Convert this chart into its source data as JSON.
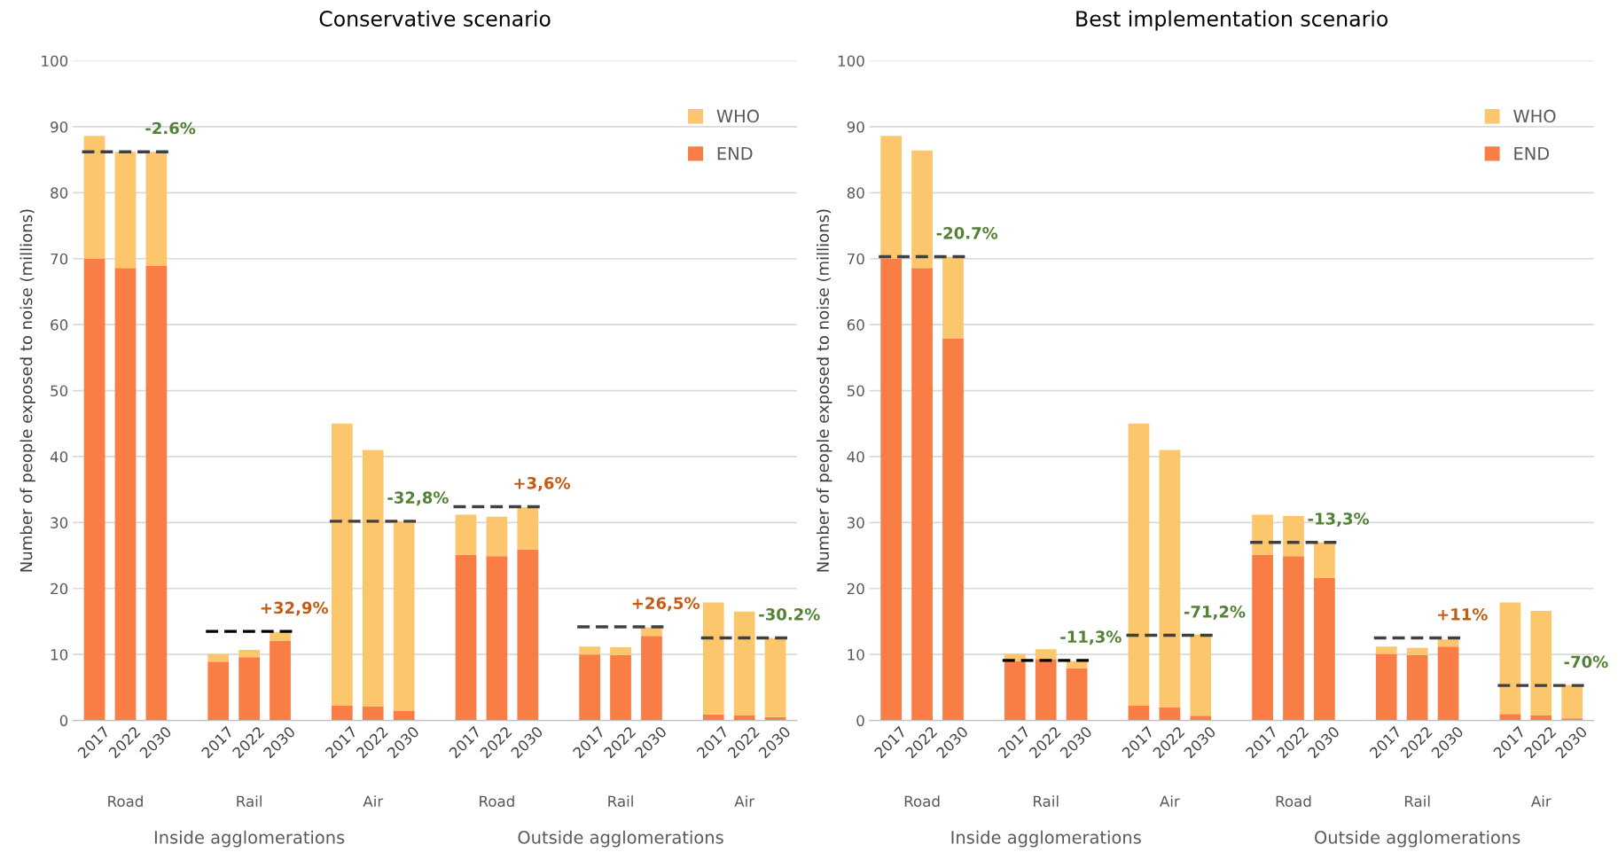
{
  "chart_data": [
    {
      "type": "bar",
      "title": "Conservative scenario",
      "ylabel": "Number of people exposed to noise (millions)",
      "stacked": true,
      "legend": "top right",
      "grid": "y",
      "categories": [
        "2017",
        "2022",
        "2030",
        "2017",
        "2022",
        "2030",
        "2017",
        "2022",
        "2030",
        "2017",
        "2022",
        "2030",
        "2017",
        "2022",
        "2030",
        "2017",
        "2022",
        "2030"
      ],
      "series": [
        {
          "name": "END",
          "color": "#f87e45",
          "values": [
            70.0,
            68.6,
            68.9,
            8.9,
            9.6,
            12.1,
            2.3,
            2.1,
            1.5,
            25.1,
            24.9,
            25.9,
            10.0,
            9.9,
            12.8,
            0.9,
            0.8,
            0.5
          ]
        },
        {
          "name": "WHO",
          "color": "#fcc66d",
          "values": [
            18.6,
            17.6,
            17.3,
            1.2,
            1.1,
            1.3,
            42.7,
            38.9,
            28.7,
            6.1,
            6.0,
            6.4,
            1.2,
            1.2,
            1.3,
            17.0,
            15.7,
            12.0
          ]
        }
      ],
      "ylim": [
        0,
        100
      ],
      "yticks": [
        0,
        10,
        20,
        30,
        40,
        50,
        60,
        70,
        80,
        90,
        100
      ],
      "ref_lines": [
        {
          "axis": "y",
          "value": 86.2,
          "color": "#404040",
          "line_style": "dashed"
        },
        {
          "axis": "y",
          "value": 13.5,
          "color": "#000000",
          "line_style": "dashed"
        },
        {
          "axis": "y",
          "value": 30.2,
          "color": "#404040",
          "line_style": "dashed"
        },
        {
          "axis": "y",
          "value": 32.4,
          "color": "#404040",
          "line_style": "dashed"
        },
        {
          "axis": "y",
          "value": 14.2,
          "color": "#404040",
          "line_style": "dashed"
        },
        {
          "axis": "y",
          "value": 12.5,
          "color": "#404040",
          "line_style": "dashed"
        }
      ],
      "annotations": [
        "Road",
        "Rail",
        "Air",
        "Road",
        "Rail",
        "Air",
        "Inside agglomerations",
        "Outside agglomerations",
        "-2.6%",
        "+32,9%",
        "-32,8%",
        "+3,6%",
        "+26,5%",
        "-30.2%"
      ]
    },
    {
      "type": "bar",
      "title": "Best implementation scenario",
      "ylabel": "Number of people exposed to noise (millions)",
      "stacked": true,
      "legend": "top right",
      "grid": "y",
      "categories": [
        "2017",
        "2022",
        "2030",
        "2017",
        "2022",
        "2030",
        "2017",
        "2022",
        "2030",
        "2017",
        "2022",
        "2030",
        "2017",
        "2022",
        "2030",
        "2017",
        "2022",
        "2030"
      ],
      "series": [
        {
          "name": "END",
          "color": "#f87e45",
          "values": [
            70.0,
            68.6,
            57.9,
            9.0,
            9.3,
            7.9,
            2.3,
            2.0,
            0.7,
            25.1,
            24.9,
            21.6,
            10.1,
            9.9,
            11.2,
            1.0,
            0.8,
            0.3
          ]
        },
        {
          "name": "WHO",
          "color": "#fcc66d",
          "values": [
            18.6,
            17.8,
            12.4,
            1.1,
            1.5,
            1.1,
            42.7,
            39.0,
            12.3,
            6.1,
            6.1,
            5.4,
            1.1,
            1.1,
            1.1,
            16.9,
            15.8,
            5.1
          ]
        }
      ],
      "ylim": [
        0,
        100
      ],
      "yticks": [
        0,
        10,
        20,
        30,
        40,
        50,
        60,
        70,
        80,
        90,
        100
      ],
      "ref_lines": [
        {
          "axis": "y",
          "value": 70.3,
          "color": "#404040",
          "line_style": "dashed"
        },
        {
          "axis": "y",
          "value": 9.1,
          "color": "#000000",
          "line_style": "dashed"
        },
        {
          "axis": "y",
          "value": 12.9,
          "color": "#404040",
          "line_style": "dashed"
        },
        {
          "axis": "y",
          "value": 27.0,
          "color": "#404040",
          "line_style": "dashed"
        },
        {
          "axis": "y",
          "value": 12.5,
          "color": "#404040",
          "line_style": "dashed"
        },
        {
          "axis": "y",
          "value": 5.3,
          "color": "#404040",
          "line_style": "dashed"
        }
      ],
      "annotations": [
        "Road",
        "Rail",
        "Air",
        "Road",
        "Rail",
        "Air",
        "Inside agglomerations",
        "Outside agglomerations",
        "-20.7%",
        "-11,3%",
        "-71,2%",
        "-13,3%",
        "+11%",
        "-70%"
      ]
    }
  ]
}
